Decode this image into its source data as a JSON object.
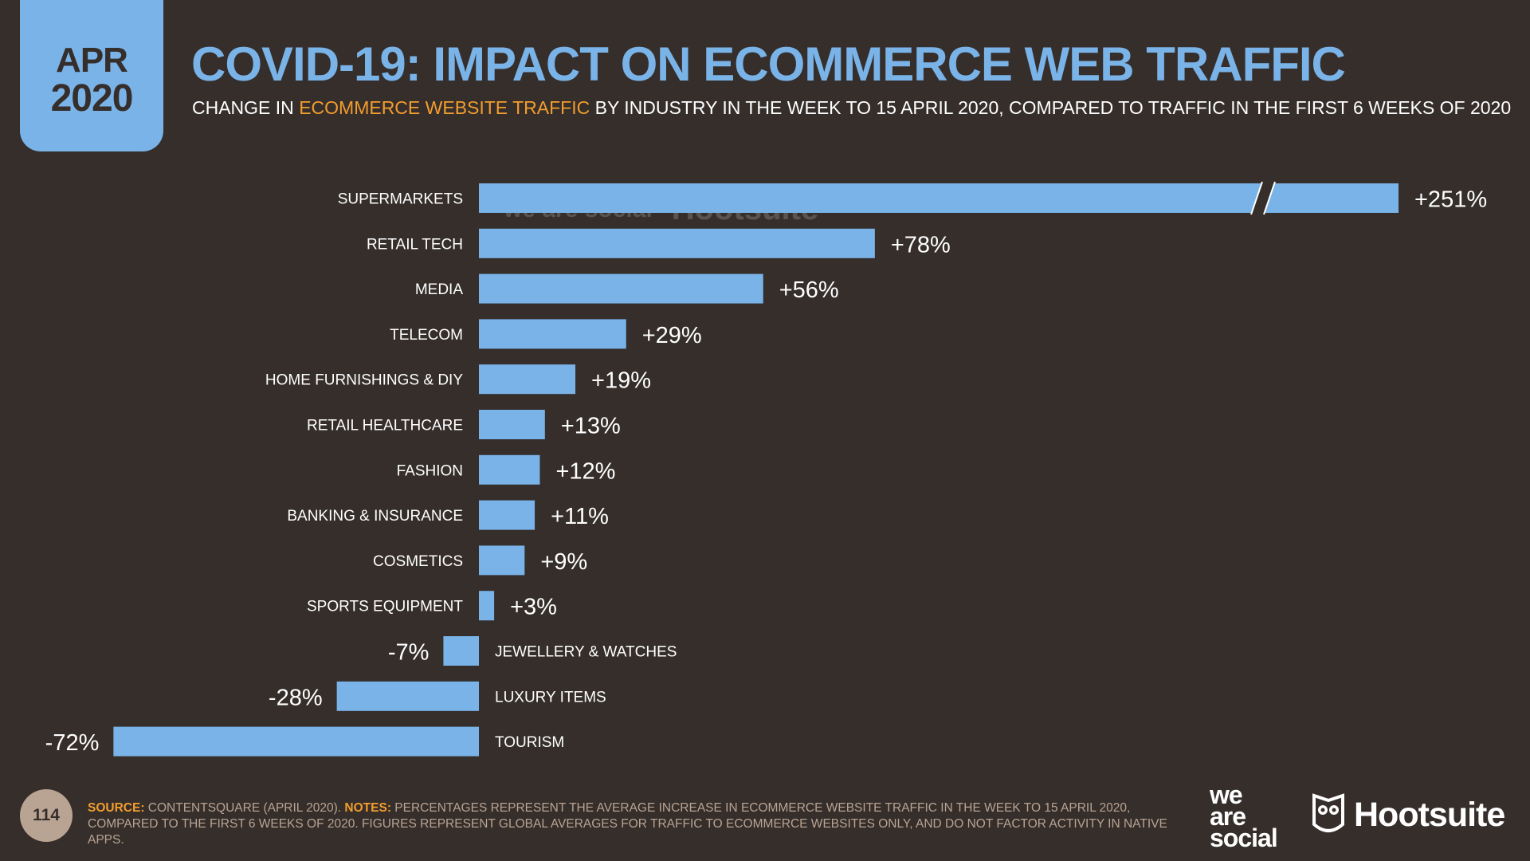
{
  "badge": {
    "month": "APR",
    "year": "2020"
  },
  "header": {
    "title": "COVID-19: IMPACT ON ECOMMERCE WEB TRAFFIC",
    "subtitle_pre": "CHANGE IN ",
    "subtitle_highlight": "ECOMMERCE WEBSITE TRAFFIC",
    "subtitle_post": " BY INDUSTRY IN THE WEEK TO  15 APRIL 2020, COMPARED TO TRAFFIC IN THE FIRST 6 WEEKS OF 2020"
  },
  "chart_data": {
    "type": "bar",
    "orientation": "horizontal",
    "title": "",
    "xlabel": "",
    "ylabel": "",
    "categories": [
      "SUPERMARKETS",
      "RETAIL TECH",
      "MEDIA",
      "TELECOM",
      "HOME FURNISHINGS & DIY",
      "RETAIL HEALTHCARE",
      "FASHION",
      "BANKING & INSURANCE",
      "COSMETICS",
      "SPORTS EQUIPMENT",
      "JEWELLERY & WATCHES",
      "LUXURY ITEMS",
      "TOURISM"
    ],
    "values": [
      251,
      78,
      56,
      29,
      19,
      13,
      12,
      11,
      9,
      3,
      -7,
      -28,
      -72
    ],
    "value_labels": [
      "+251%",
      "+78%",
      "+56%",
      "+29%",
      "+19%",
      "+13%",
      "+12%",
      "+11%",
      "+9%",
      "+3%",
      "-7%",
      "-28%",
      "-72%"
    ],
    "axis_break": {
      "category": "SUPERMARKETS"
    },
    "bar_color": "#7ab3e8",
    "grid": false,
    "legend": "none"
  },
  "watermark": {
    "left": "we are social",
    "right": "Hootsuite"
  },
  "footer": {
    "page_number": "114",
    "source_label": "SOURCE:",
    "source_text": " CONTENTSQUARE (APRIL 2020). ",
    "notes_label": "NOTES:",
    "notes_text": " PERCENTAGES REPRESENT THE AVERAGE INCREASE IN ECOMMERCE WEBSITE TRAFFIC IN THE WEEK TO 15 APRIL 2020, COMPARED TO THE FIRST 6 WEEKS OF 2020. FIGURES REPRESENT GLOBAL AVERAGES FOR TRAFFIC TO ECOMMERCE WEBSITES ONLY, AND DO NOT FACTOR ACTIVITY IN NATIVE APPS."
  },
  "brands": {
    "was_line1": "we",
    "was_line2": "are",
    "was_line3": "social",
    "hootsuite": "Hootsuite",
    "hootsuite_icon": "owl-icon"
  },
  "colors": {
    "background": "#352e2b",
    "accent": "#7ab3e8",
    "highlight": "#f29d2e",
    "muted": "#b9a493"
  }
}
